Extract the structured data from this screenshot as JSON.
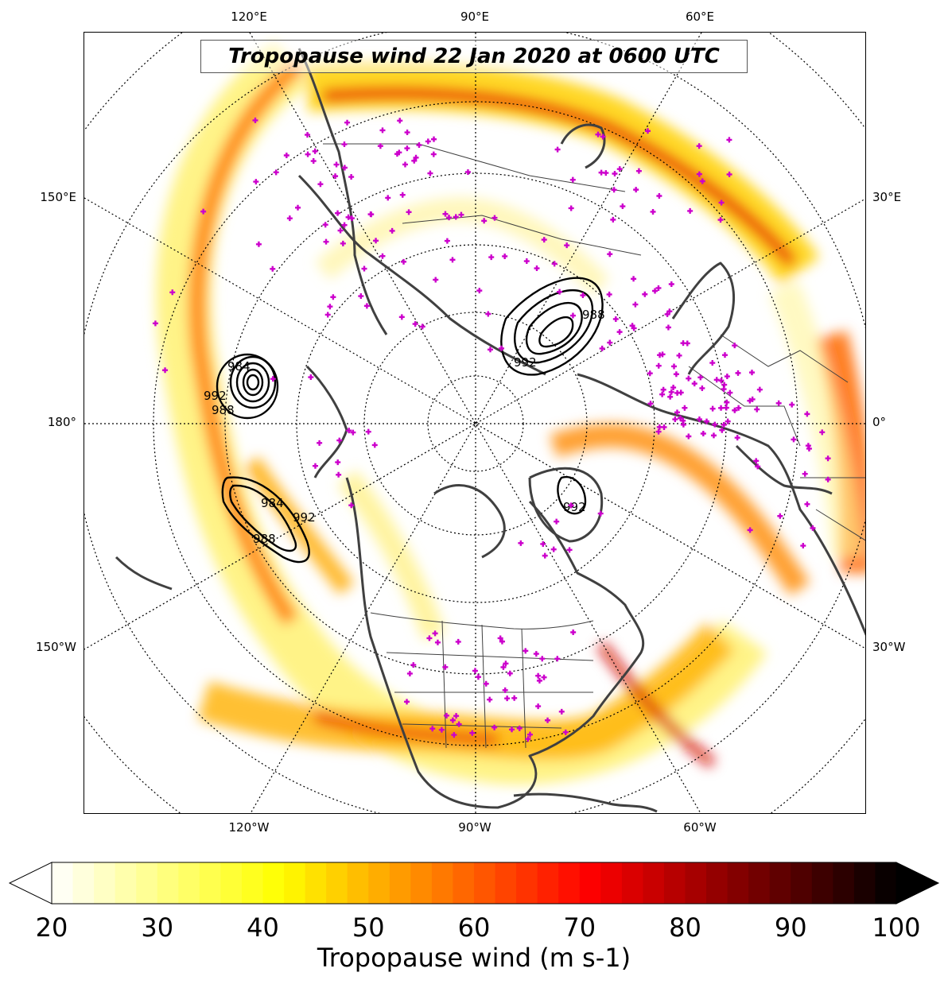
{
  "title": "Tropopause wind 22 Jan 2020 at 0600 UTC",
  "longitude_labels": {
    "top": [
      "120°E",
      "90°E",
      "60°E"
    ],
    "bottom": [
      "120°W",
      "90°W",
      "60°W"
    ],
    "left": [
      "150°E",
      "180°",
      "150°W"
    ],
    "right": [
      "30°E",
      "0°",
      "30°W"
    ]
  },
  "pressure_contours": [
    {
      "system": "north-pacific-west",
      "labels": [
        "984",
        "992",
        "988"
      ]
    },
    {
      "system": "north-pacific-east",
      "labels": [
        "984",
        "992",
        "988"
      ]
    },
    {
      "system": "siberia",
      "labels": [
        "988",
        "992"
      ]
    },
    {
      "system": "greenland",
      "labels": [
        "992"
      ]
    }
  ],
  "colorbar": {
    "label": "Tropopause wind (m s-1)",
    "ticks": [
      "20",
      "30",
      "40",
      "50",
      "60",
      "70",
      "80",
      "90",
      "100"
    ],
    "min": 20,
    "max": 100,
    "extend": "both",
    "colormap": "hot_r"
  },
  "colors": {
    "station_marker": "#cc00cc",
    "coastline": "#404040",
    "contour": "#000000"
  }
}
